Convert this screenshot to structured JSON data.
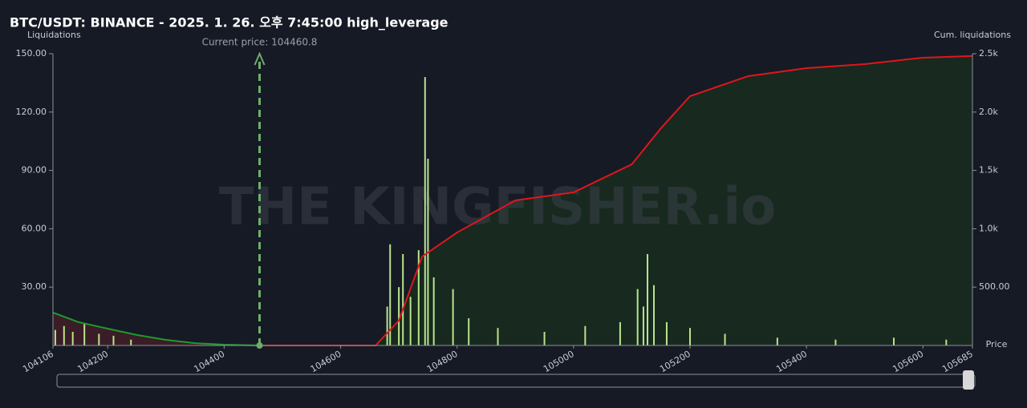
{
  "chart_data": {
    "type": "liquidation-map",
    "title": "BTC/USDT: BINANCE - 2025. 1. 26. 오후 7:45:00 high_leverage",
    "y_label": "Liquidations",
    "y2_label": "Cum. liquidations",
    "x_label": "Price",
    "annotation": "Current price: 104460.8",
    "current_price": 104460.8,
    "watermark": "THE KINGFISHER.io",
    "xlim": [
      104106,
      105685
    ],
    "xticks": [
      104106,
      104200,
      104400,
      104600,
      104800,
      105000,
      105200,
      105400,
      105600,
      105685
    ],
    "ylim": [
      0,
      150
    ],
    "yticks": [
      {
        "value": 30,
        "label": "30.00"
      },
      {
        "value": 60,
        "label": "60.00"
      },
      {
        "value": 90,
        "label": "90.00"
      },
      {
        "value": 120,
        "label": "120.00"
      },
      {
        "value": 150,
        "label": "150.00"
      }
    ],
    "y2lim": [
      0,
      2500
    ],
    "y2ticks": [
      {
        "value": 500,
        "label": "500.00"
      },
      {
        "value": 1000,
        "label": "1.0k"
      },
      {
        "value": 1500,
        "label": "1.5k"
      },
      {
        "value": 2000,
        "label": "2.0k"
      },
      {
        "value": 2500,
        "label": "2.5k"
      }
    ],
    "bars": {
      "color": "#b8e58c",
      "x": [
        104110,
        104125,
        104140,
        104160,
        104185,
        104210,
        104240,
        104680,
        104685,
        104700,
        104707,
        104720,
        104734,
        104745,
        104750,
        104760,
        104793,
        104820,
        104870,
        104950,
        105020,
        105080,
        105110,
        105120,
        105127,
        105138,
        105160,
        105200,
        105260,
        105350,
        105450,
        105550,
        105640
      ],
      "values": [
        8,
        10,
        7,
        11,
        6,
        5,
        3,
        20,
        52,
        30,
        47,
        25,
        49,
        138,
        96,
        35,
        29,
        14,
        9,
        7,
        10,
        12,
        29,
        20,
        47,
        31,
        12,
        9,
        6,
        4,
        3,
        4,
        3
      ]
    },
    "short_cum": {
      "color": "#1f9a2c",
      "fill": "#3a1d26",
      "x": [
        104106,
        104150,
        104200,
        104250,
        104300,
        104350,
        104400,
        104460.8
      ],
      "values": [
        282,
        200,
        144,
        90,
        48,
        20,
        7,
        0
      ]
    },
    "long_cum": {
      "color": "#e0161c",
      "fill": "#18291f",
      "x": [
        104460.8,
        104660,
        104700,
        104740,
        104800,
        104900,
        105000,
        105100,
        105150,
        105200,
        105300,
        105400,
        105500,
        105600,
        105685
      ],
      "values": [
        0,
        0,
        213,
        762,
        968,
        1243,
        1312,
        1552,
        1861,
        2136,
        2308,
        2376,
        2411,
        2466,
        2480
      ]
    }
  }
}
